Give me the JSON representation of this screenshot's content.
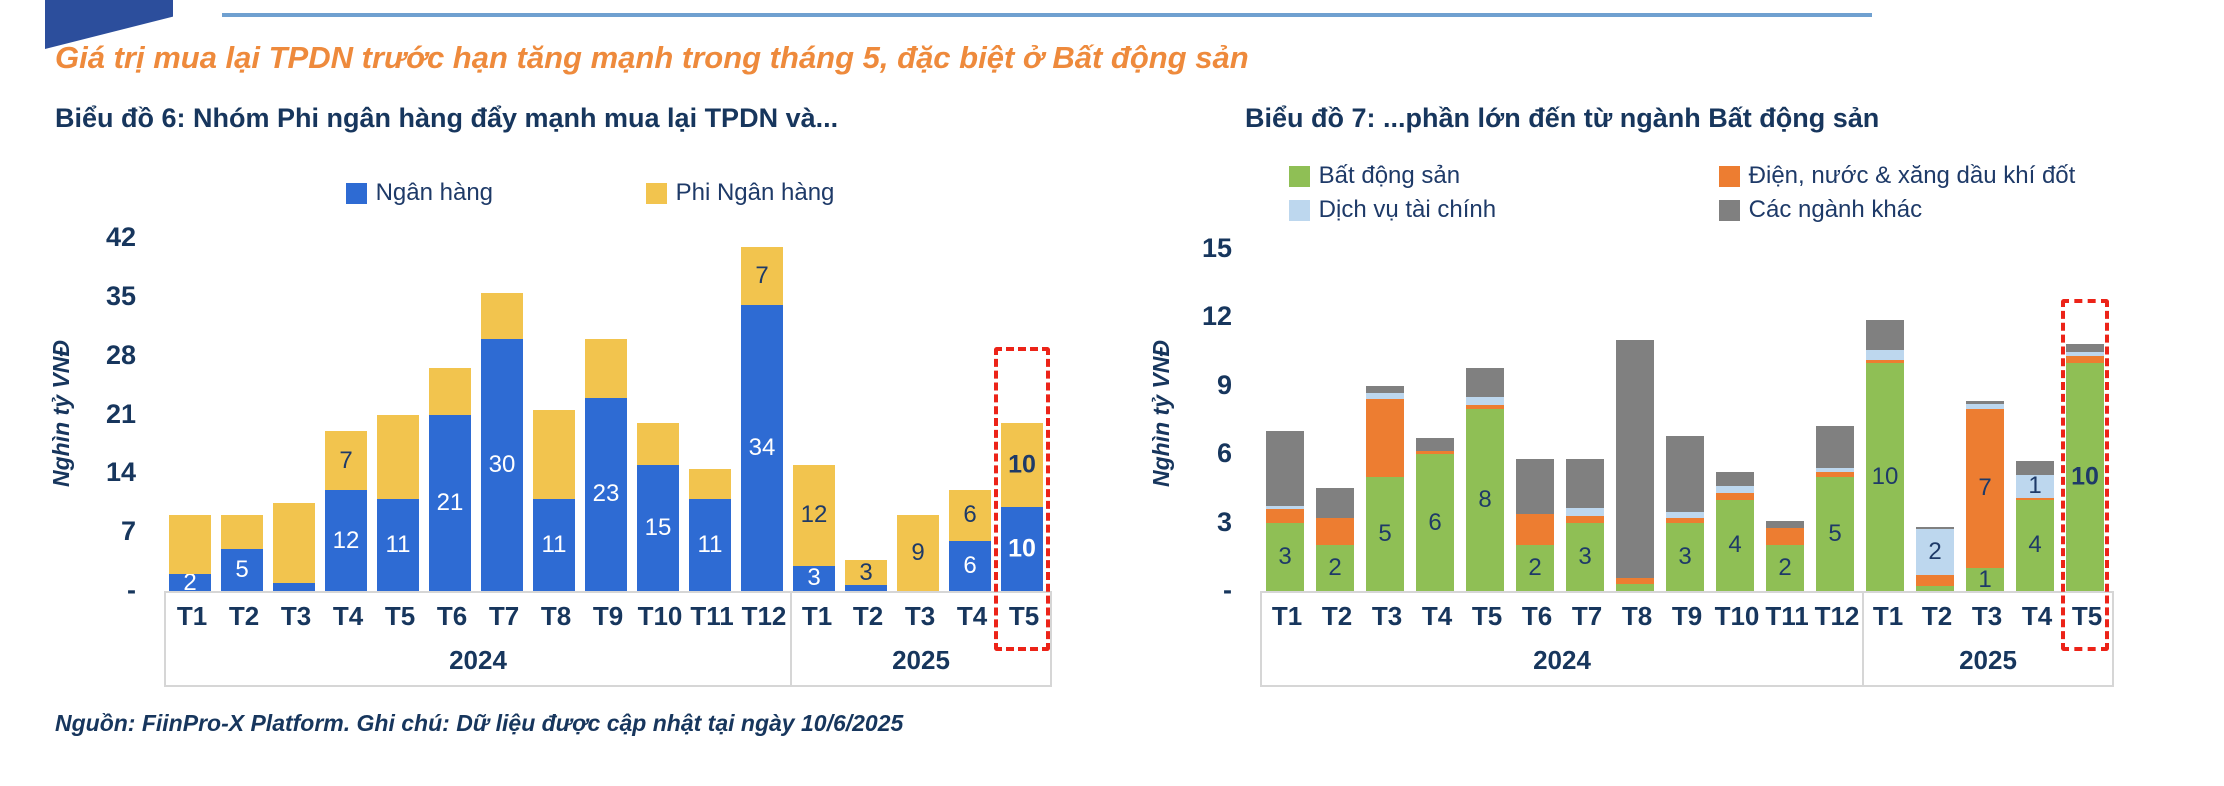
{
  "header": {
    "title": "Giá trị mua lại TPDN trước hạn tăng mạnh trong tháng 5, đặc biệt ở Bất động sản",
    "title_color": "#EE8A3C"
  },
  "source_note": "Nguồn: FiinPro-X Platform. Ghi chú: Dữ liệu được cập nhật tại ngày 10/6/2025",
  "accent_colors": {
    "highlight_dash": "#EC2318",
    "top_rule": "#6FA0D0",
    "logo_blue": "#2C4E9C",
    "navy_text": "#17365D"
  },
  "chart_data": [
    {
      "type": "bar",
      "stacked": true,
      "title": "Biểu đồ 6: Nhóm Phi ngân hàng đẩy mạnh mua lại TPDN và...",
      "ylabel": "Nghìn tỷ VNĐ",
      "ylim": [
        0,
        42
      ],
      "grid": false,
      "legend_position": "top",
      "yticks": [
        {
          "label": "42",
          "value": 42
        },
        {
          "label": "35",
          "value": 35
        },
        {
          "label": "28",
          "value": 28
        },
        {
          "label": "21",
          "value": 21
        },
        {
          "label": "14",
          "value": 14
        },
        {
          "label": "7",
          "value": 7
        },
        {
          "label": "-",
          "value": 0
        }
      ],
      "categories": [
        "T1",
        "T2",
        "T3",
        "T4",
        "T5",
        "T6",
        "T7",
        "T8",
        "T9",
        "T10",
        "T11",
        "T12",
        "T1",
        "T2",
        "T3",
        "T4",
        "T5"
      ],
      "year_groups": [
        {
          "label": "2024",
          "span": 12
        },
        {
          "label": "2025",
          "span": 5
        }
      ],
      "series": [
        {
          "name": "Ngân hàng",
          "color": "#2E6BD3",
          "label_color": "#FFFFFF",
          "values": [
            2,
            5,
            1,
            12,
            11,
            21,
            30,
            11,
            23,
            15,
            11,
            34,
            3,
            0.7,
            0,
            6,
            10
          ],
          "labels": [
            "2",
            "5",
            "",
            "12",
            "11",
            "21",
            "30",
            "11",
            "23",
            "15",
            "11",
            "34",
            "3",
            "",
            "",
            "6",
            "10"
          ]
        },
        {
          "name": "Phi Ngân hàng",
          "color": "#F2C44E",
          "label_color": "#1E3A68",
          "values": [
            7,
            4,
            9.5,
            7,
            10,
            5.5,
            5.5,
            10.5,
            7,
            5,
            3.5,
            7,
            12,
            3,
            9,
            6,
            10
          ],
          "labels": [
            "",
            "",
            "",
            "7",
            "",
            "",
            "",
            "",
            "",
            "",
            "",
            "7",
            "12",
            "3",
            "9",
            "6",
            "10"
          ]
        }
      ],
      "highlight": {
        "category": "T5",
        "year": "2025",
        "index": 16
      }
    },
    {
      "type": "bar",
      "stacked": true,
      "title": "Biểu đồ 7: ...phần lớn đến từ ngành Bất động sản",
      "ylabel": "Nghìn tỷ VNĐ",
      "ylim": [
        0,
        15
      ],
      "grid": false,
      "legend_position": "top",
      "yticks": [
        {
          "label": "15",
          "value": 15
        },
        {
          "label": "12",
          "value": 12
        },
        {
          "label": "9",
          "value": 9
        },
        {
          "label": "6",
          "value": 6
        },
        {
          "label": "3",
          "value": 3
        },
        {
          "label": "-",
          "value": 0
        }
      ],
      "categories": [
        "T1",
        "T2",
        "T3",
        "T4",
        "T5",
        "T6",
        "T7",
        "T8",
        "T9",
        "T10",
        "T11",
        "T12",
        "T1",
        "T2",
        "T3",
        "T4",
        "T5"
      ],
      "year_groups": [
        {
          "label": "2024",
          "span": 12
        },
        {
          "label": "2025",
          "span": 5
        }
      ],
      "series": [
        {
          "name": "Bất động sản",
          "color": "#8FBF55",
          "label_color": "#1E3A68",
          "values": [
            3,
            2,
            5,
            6,
            8,
            2,
            3,
            0.3,
            3,
            4,
            2,
            5,
            10,
            0.2,
            1,
            4,
            10
          ],
          "labels": [
            "3",
            "2",
            "5",
            "6",
            "8",
            "2",
            "3",
            "",
            "3",
            "4",
            "2",
            "5",
            "10",
            "",
            "1",
            "4",
            "10"
          ]
        },
        {
          "name": "Điện, nước & xăng dầu khí đốt",
          "color": "#ED7D31",
          "label_color": "#1E3A68",
          "values": [
            0.6,
            1.2,
            3.4,
            0.15,
            0.15,
            1.4,
            0.3,
            0.25,
            0.2,
            0.3,
            0.75,
            0.2,
            0.15,
            0.5,
            7,
            0.1,
            0.3
          ],
          "labels": [
            "",
            "",
            "",
            "",
            "",
            "",
            "",
            "",
            "",
            "",
            "",
            "",
            "",
            "",
            "7",
            "",
            ""
          ]
        },
        {
          "name": "Dịch vụ tài chính",
          "color": "#BDD7EE",
          "label_color": "#1E3A68",
          "values": [
            0.15,
            0,
            0.3,
            0,
            0.35,
            0,
            0.35,
            0,
            0.25,
            0.3,
            0,
            0.2,
            0.4,
            2,
            0.2,
            1,
            0.2
          ],
          "labels": [
            "",
            "",
            "",
            "",
            "",
            "",
            "",
            "",
            "",
            "",
            "",
            "",
            "",
            "2",
            "",
            "1",
            ""
          ]
        },
        {
          "name": "Các ngành khác",
          "color": "#808080",
          "label_color": "#FFFFFF",
          "values": [
            3.25,
            1.3,
            0.3,
            0.55,
            1.3,
            2.4,
            2.15,
            10.45,
            3.35,
            0.6,
            0.3,
            1.85,
            1.35,
            0.1,
            0.15,
            0.6,
            0.35
          ],
          "labels": [
            "",
            "",
            "",
            "",
            "",
            "",
            "",
            "",
            "",
            "",
            "",
            "",
            "",
            "",
            "",
            "",
            ""
          ]
        }
      ],
      "highlight": {
        "category": "T5",
        "year": "2025",
        "index": 16
      }
    }
  ]
}
